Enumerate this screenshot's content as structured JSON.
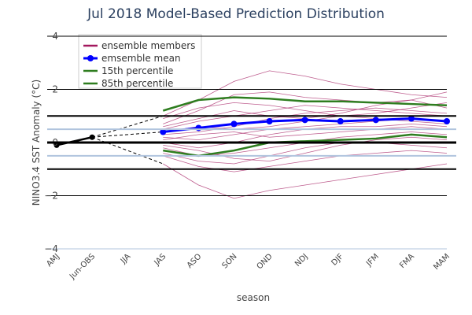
{
  "chart_data": {
    "type": "line",
    "title": "Jul 2018 Model-Based Prediction Distribution",
    "xlabel": "season",
    "ylabel": "NINO3.4 SST Anomaly (°C)",
    "categories": [
      "AMJ",
      "Jun-OBS",
      "JJA",
      "JAS",
      "ASO",
      "SON",
      "OND",
      "NDJ",
      "DJF",
      "JFM",
      "FMA",
      "MAM"
    ],
    "ylim": [
      -4,
      4
    ],
    "yticks": [
      {
        "value": -4,
        "label": "−4"
      },
      {
        "value": -2,
        "label": "−2"
      },
      0,
      2,
      4
    ],
    "hlines": [
      {
        "value": -1,
        "color": "#000000"
      },
      {
        "value": -0.5,
        "color": "#b0c4de"
      },
      {
        "value": 0,
        "color": "#000000"
      },
      {
        "value": 0.5,
        "color": "#b0c4de"
      },
      {
        "value": 1,
        "color": "#000000"
      }
    ],
    "observed": {
      "color": "#000000",
      "values": [
        -0.1,
        0.2,
        null,
        null,
        null,
        null,
        null,
        null,
        null,
        null,
        null,
        null
      ]
    },
    "series": [
      {
        "name": "ensemble members",
        "color": "#a3185e",
        "members": [
          [
            null,
            null,
            null,
            1.0,
            1.6,
            2.3,
            2.7,
            2.5,
            2.2,
            2.0,
            1.8,
            1.7
          ],
          [
            null,
            null,
            null,
            0.9,
            1.3,
            1.5,
            1.4,
            1.2,
            1.0,
            1.1,
            1.3,
            1.5
          ],
          [
            null,
            null,
            null,
            0.5,
            0.8,
            1.0,
            1.2,
            1.4,
            1.3,
            1.2,
            1.1,
            1.0
          ],
          [
            null,
            null,
            null,
            0.3,
            0.4,
            0.6,
            0.9,
            1.1,
            1.2,
            1.3,
            1.2,
            1.1
          ],
          [
            null,
            null,
            null,
            0.2,
            0.1,
            0.3,
            0.5,
            0.6,
            0.7,
            0.8,
            0.9,
            0.8
          ],
          [
            null,
            null,
            null,
            0.0,
            -0.2,
            0.0,
            0.3,
            0.5,
            0.6,
            0.6,
            0.7,
            0.6
          ],
          [
            null,
            null,
            null,
            -0.2,
            -0.5,
            -0.4,
            -0.2,
            0.0,
            0.2,
            0.3,
            0.4,
            0.3
          ],
          [
            null,
            null,
            null,
            -0.5,
            -0.9,
            -1.1,
            -0.9,
            -0.7,
            -0.5,
            -0.4,
            -0.3,
            -0.4
          ],
          [
            null,
            null,
            null,
            -0.8,
            -1.6,
            -2.1,
            -1.8,
            -1.6,
            -1.4,
            -1.2,
            -1.0,
            -0.8
          ],
          [
            null,
            null,
            null,
            0.7,
            1.2,
            1.8,
            1.9,
            1.7,
            1.6,
            1.5,
            1.6,
            1.9
          ],
          [
            null,
            null,
            null,
            0.4,
            0.6,
            0.5,
            0.6,
            0.8,
            1.0,
            0.9,
            0.8,
            0.7
          ],
          [
            null,
            null,
            null,
            -0.1,
            -0.3,
            -0.6,
            -0.7,
            -0.4,
            -0.1,
            0.1,
            0.2,
            0.1
          ],
          [
            null,
            null,
            null,
            0.6,
            0.9,
            1.2,
            1.0,
            0.9,
            1.1,
            1.4,
            1.6,
            1.3
          ],
          [
            null,
            null,
            null,
            0.1,
            0.3,
            0.4,
            0.2,
            0.3,
            0.4,
            0.5,
            0.6,
            0.5
          ],
          [
            null,
            null,
            null,
            -0.4,
            -0.7,
            -0.8,
            -0.5,
            -0.2,
            0.0,
            0.0,
            -0.1,
            -0.2
          ]
        ]
      },
      {
        "name": "emsemble mean",
        "color": "#0000ff",
        "values": [
          null,
          null,
          null,
          0.4,
          0.55,
          0.7,
          0.8,
          0.85,
          0.8,
          0.85,
          0.9,
          0.8
        ]
      },
      {
        "name": "15th percentile",
        "color": "#2e7d1f",
        "values": [
          null,
          null,
          null,
          -0.3,
          -0.5,
          -0.3,
          0.0,
          0.05,
          0.1,
          0.15,
          0.3,
          0.2
        ]
      },
      {
        "name": "85th percentile",
        "color": "#2e7d1f",
        "values": [
          null,
          null,
          null,
          1.2,
          1.6,
          1.7,
          1.65,
          1.55,
          1.55,
          1.5,
          1.45,
          1.4
        ]
      }
    ]
  }
}
